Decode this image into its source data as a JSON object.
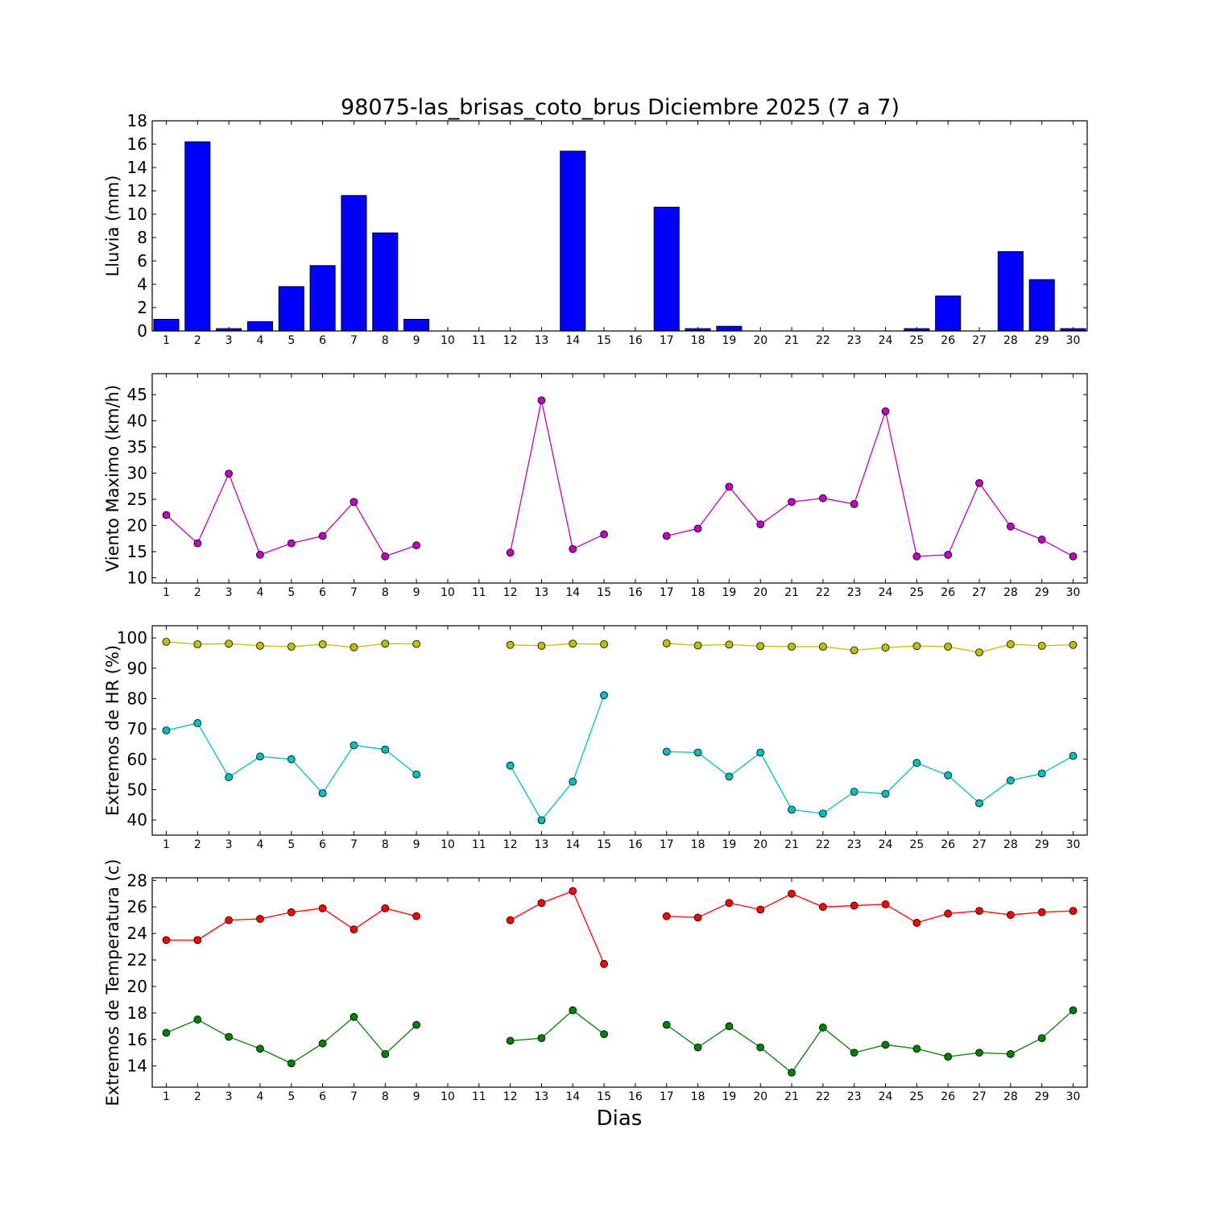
{
  "title": "98075-las_brisas_coto_brus Diciembre 2025  (7 a 7)",
  "xlabel": "Dias",
  "colors": {
    "rain_bar": "#0000ff",
    "wind": "#bf00bf",
    "hr_max": "#bfbf00",
    "hr_min": "#00bfbf",
    "temp_max": "#ff0000",
    "temp_min": "#008000"
  },
  "chart_data": [
    {
      "type": "bar",
      "ylabel": "Lluvia (mm)",
      "ylim": [
        0,
        18
      ],
      "yticks": [
        0,
        2,
        4,
        6,
        8,
        10,
        12,
        14,
        16,
        18
      ],
      "xticks": [
        1,
        2,
        3,
        4,
        5,
        6,
        7,
        8,
        9,
        10,
        11,
        12,
        13,
        14,
        15,
        16,
        17,
        18,
        19,
        20,
        21,
        22,
        23,
        24,
        25,
        26,
        27,
        28,
        29,
        30
      ],
      "x": [
        1,
        2,
        3,
        4,
        5,
        6,
        7,
        8,
        9,
        10,
        11,
        12,
        13,
        14,
        15,
        16,
        17,
        18,
        19,
        20,
        21,
        22,
        23,
        24,
        25,
        26,
        27,
        28,
        29,
        30
      ],
      "values": [
        1.0,
        16.2,
        0.2,
        0.8,
        3.8,
        5.6,
        11.6,
        8.4,
        1.0,
        0,
        0,
        0,
        0,
        15.4,
        0,
        0,
        10.6,
        0.2,
        0.4,
        0,
        0,
        0,
        0,
        0,
        0.2,
        3.0,
        0,
        6.8,
        4.4,
        0.2
      ]
    },
    {
      "type": "line",
      "ylabel": "Viento Maximo (km/h)",
      "ylim": [
        9,
        49
      ],
      "yticks": [
        10,
        15,
        20,
        25,
        30,
        35,
        40,
        45
      ],
      "xticks": [
        1,
        2,
        3,
        4,
        5,
        6,
        7,
        8,
        9,
        10,
        11,
        12,
        13,
        14,
        15,
        16,
        17,
        18,
        19,
        20,
        21,
        22,
        23,
        24,
        25,
        26,
        27,
        28,
        29,
        30
      ],
      "x": [
        1,
        2,
        3,
        4,
        5,
        6,
        7,
        8,
        9,
        10,
        11,
        12,
        13,
        14,
        15,
        16,
        17,
        18,
        19,
        20,
        21,
        22,
        23,
        24,
        25,
        26,
        27,
        28,
        29,
        30
      ],
      "series": [
        {
          "values": [
            22.0,
            16.6,
            29.9,
            14.4,
            16.6,
            18.0,
            24.5,
            14.1,
            16.2,
            null,
            null,
            14.8,
            43.9,
            15.5,
            18.3,
            null,
            18.0,
            19.4,
            27.4,
            20.2,
            24.5,
            25.2,
            24.1,
            41.8,
            14.1,
            14.4,
            28.1,
            19.8,
            17.3,
            14.1
          ]
        }
      ]
    },
    {
      "type": "line",
      "ylabel": "Extremos de HR (%)",
      "ylim": [
        35,
        104
      ],
      "yticks": [
        40,
        50,
        60,
        70,
        80,
        90,
        100
      ],
      "xticks": [
        1,
        2,
        3,
        4,
        5,
        6,
        7,
        8,
        9,
        10,
        11,
        12,
        13,
        14,
        15,
        16,
        17,
        18,
        19,
        20,
        21,
        22,
        23,
        24,
        25,
        26,
        27,
        28,
        29,
        30
      ],
      "x": [
        1,
        2,
        3,
        4,
        5,
        6,
        7,
        8,
        9,
        10,
        11,
        12,
        13,
        14,
        15,
        16,
        17,
        18,
        19,
        20,
        21,
        22,
        23,
        24,
        25,
        26,
        27,
        28,
        29,
        30
      ],
      "series": [
        {
          "values": [
            98.7,
            97.9,
            98.1,
            97.4,
            97.1,
            97.9,
            96.9,
            98.1,
            98.0,
            null,
            null,
            97.7,
            97.4,
            98.1,
            97.9,
            null,
            98.2,
            97.5,
            97.8,
            97.3,
            97.1,
            97.1,
            95.9,
            96.8,
            97.3,
            97.1,
            95.2,
            97.9,
            97.4,
            97.7
          ]
        },
        {
          "values": [
            69.5,
            71.9,
            54.1,
            60.9,
            60.0,
            48.8,
            64.6,
            63.2,
            55.0,
            null,
            null,
            57.9,
            39.9,
            52.6,
            81.1,
            null,
            62.5,
            62.2,
            54.3,
            62.2,
            43.4,
            42.1,
            49.3,
            48.6,
            58.8,
            54.7,
            45.5,
            53.0,
            55.3,
            61.1
          ]
        }
      ]
    },
    {
      "type": "line",
      "ylabel": "Extremos de Temperatura (c)",
      "ylim": [
        12.4,
        28.2
      ],
      "yticks": [
        14,
        16,
        18,
        20,
        22,
        24,
        26,
        28
      ],
      "xticks": [
        1,
        2,
        3,
        4,
        5,
        6,
        7,
        8,
        9,
        10,
        11,
        12,
        13,
        14,
        15,
        16,
        17,
        18,
        19,
        20,
        21,
        22,
        23,
        24,
        25,
        26,
        27,
        28,
        29,
        30
      ],
      "x": [
        1,
        2,
        3,
        4,
        5,
        6,
        7,
        8,
        9,
        10,
        11,
        12,
        13,
        14,
        15,
        16,
        17,
        18,
        19,
        20,
        21,
        22,
        23,
        24,
        25,
        26,
        27,
        28,
        29,
        30
      ],
      "series": [
        {
          "values": [
            23.5,
            23.5,
            25.0,
            25.1,
            25.6,
            25.9,
            24.3,
            25.9,
            25.3,
            null,
            null,
            25.0,
            26.3,
            27.2,
            21.7,
            null,
            25.3,
            25.2,
            26.3,
            25.8,
            27.0,
            26.0,
            26.1,
            26.2,
            24.8,
            25.5,
            25.7,
            25.4,
            25.6,
            25.7
          ]
        },
        {
          "values": [
            16.5,
            17.5,
            16.2,
            15.3,
            14.2,
            15.7,
            17.7,
            14.9,
            17.1,
            null,
            null,
            15.9,
            16.1,
            18.2,
            16.4,
            null,
            17.1,
            15.4,
            17.0,
            15.4,
            13.5,
            16.9,
            15.0,
            15.6,
            15.3,
            14.7,
            15.0,
            14.9,
            16.1,
            18.2
          ]
        }
      ]
    }
  ]
}
